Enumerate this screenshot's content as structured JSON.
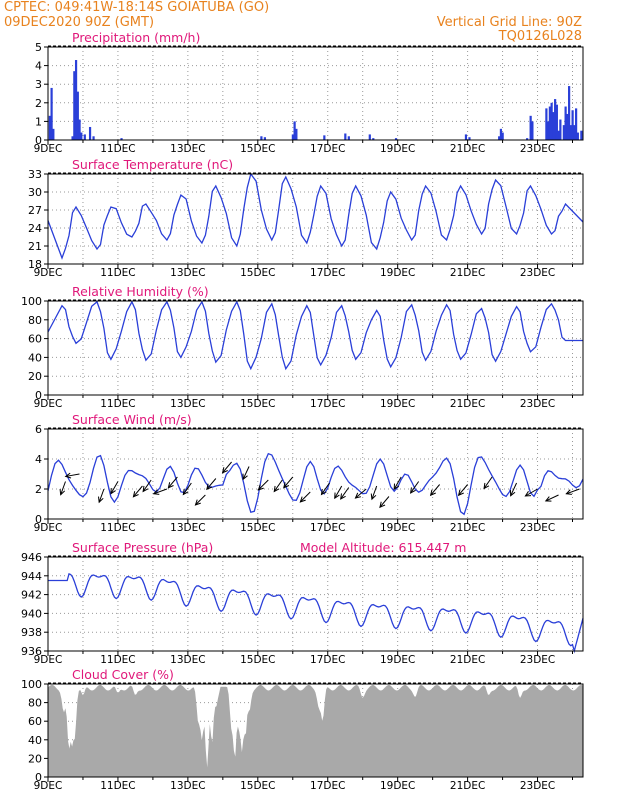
{
  "header": {
    "line1": "CPTEC:  049:41W-18:14S  GOIATUBA (GO)",
    "line2": "09DEC2020 90Z (GMT)",
    "right1": "Vertical Grid Line: 90Z",
    "right2": "TQ0126L028"
  },
  "colors": {
    "header": "#e8821e",
    "title": "#e0187a",
    "line": "#2a3fd8",
    "cloud": "#a9a9a9"
  },
  "x_tick_labels": [
    "9DEC",
    "11DEC",
    "13DEC",
    "15DEC",
    "17DEC",
    "19DEC",
    "21DEC",
    "23DEC"
  ],
  "model_altitude": "Model Altitude: 615.447 m",
  "chart_data": [
    {
      "type": "bar",
      "title": "Precipitation (mm/h)",
      "ylim": [
        0,
        5
      ],
      "yticks": [
        "0",
        "1",
        "2",
        "3",
        "4",
        "5"
      ],
      "x_days": [
        0,
        15.3
      ],
      "series": [
        {
          "values": [
            [
              0.05,
              1.3
            ],
            [
              0.1,
              2.8
            ],
            [
              0.15,
              0.6
            ],
            [
              0.7,
              0.2
            ],
            [
              0.75,
              3.7
            ],
            [
              0.8,
              4.3
            ],
            [
              0.85,
              2.6
            ],
            [
              0.9,
              1.1
            ],
            [
              0.95,
              0.4
            ],
            [
              1.05,
              0.3
            ],
            [
              1.2,
              0.7
            ],
            [
              1.3,
              0.2
            ],
            [
              2.1,
              0.1
            ],
            [
              6.1,
              0.2
            ],
            [
              6.2,
              0.15
            ],
            [
              7.0,
              0.3
            ],
            [
              7.05,
              1.0
            ],
            [
              7.1,
              0.6
            ],
            [
              7.9,
              0.25
            ],
            [
              8.5,
              0.35
            ],
            [
              8.6,
              0.2
            ],
            [
              9.2,
              0.3
            ],
            [
              9.3,
              0.1
            ],
            [
              9.95,
              0.1
            ],
            [
              11.95,
              0.3
            ],
            [
              12.05,
              0.15
            ],
            [
              12.9,
              0.2
            ],
            [
              12.95,
              0.6
            ],
            [
              13.0,
              0.4
            ],
            [
              13.7,
              0.1
            ],
            [
              13.8,
              1.3
            ],
            [
              13.85,
              1.0
            ],
            [
              14.25,
              1.7
            ],
            [
              14.3,
              1.0
            ],
            [
              14.35,
              1.8
            ],
            [
              14.4,
              2.0
            ],
            [
              14.45,
              1.5
            ],
            [
              14.5,
              2.2
            ],
            [
              14.55,
              1.9
            ],
            [
              14.6,
              0.5
            ],
            [
              14.65,
              1.1
            ],
            [
              14.75,
              0.8
            ],
            [
              14.8,
              1.8
            ],
            [
              14.85,
              1.4
            ],
            [
              14.9,
              2.9
            ],
            [
              14.95,
              0.8
            ],
            [
              15.0,
              1.6
            ],
            [
              15.05,
              0.8
            ],
            [
              15.1,
              1.7
            ],
            [
              15.15,
              0.4
            ],
            [
              15.25,
              0.5
            ]
          ]
        }
      ]
    },
    {
      "type": "line",
      "title": "Surface Temperature (nC)",
      "ylim": [
        18,
        33
      ],
      "yticks": [
        "18",
        "21",
        "24",
        "27",
        "30",
        "33"
      ],
      "base": {
        "morning": [
          19.0,
          20.5,
          22.5,
          22.0,
          21.5,
          21.0,
          22.0,
          21.5,
          21.0,
          20.5,
          22.0,
          22.0,
          23.0,
          23.0,
          23.0,
          22.0
        ],
        "afternoon": [
          27.5,
          27.5,
          28.0,
          29.5,
          31.0,
          33.0,
          32.5,
          31.0,
          31.0,
          30.0,
          31.0,
          31.0,
          32.0,
          31.0,
          28.0
        ]
      }
    },
    {
      "type": "line",
      "title": "Relative Humidity (%)",
      "ylim": [
        0,
        100
      ],
      "yticks": [
        "0",
        "20",
        "40",
        "60",
        "80",
        "100"
      ],
      "base": {
        "morning": [
          95,
          99,
          99,
          99,
          99,
          99,
          97,
          95,
          95,
          90,
          96,
          96,
          92,
          94,
          97,
          99
        ],
        "afternoon": [
          55,
          38,
          37,
          40,
          35,
          28,
          28,
          32,
          38,
          30,
          37,
          38,
          36,
          46,
          58
        ]
      }
    },
    {
      "type": "line",
      "title": "Surface Wind (m/s)",
      "ylim": [
        0,
        6
      ],
      "yticks": [
        "0",
        "2",
        "4",
        "6"
      ],
      "arrows": [
        [
          0.5,
          2.5,
          200
        ],
        [
          0.9,
          3.0,
          260
        ],
        [
          1.6,
          2.0,
          200
        ],
        [
          2.0,
          2.5,
          210
        ],
        [
          2.7,
          2.2,
          220
        ],
        [
          2.95,
          2.6,
          215
        ],
        [
          3.4,
          2.0,
          250
        ],
        [
          3.7,
          2.8,
          220
        ],
        [
          4.1,
          2.4,
          215
        ],
        [
          4.5,
          1.6,
          225
        ],
        [
          4.8,
          2.7,
          220
        ],
        [
          5.25,
          3.8,
          220
        ],
        [
          5.75,
          3.5,
          205
        ],
        [
          6.3,
          2.6,
          225
        ],
        [
          6.7,
          2.6,
          215
        ],
        [
          7.0,
          2.8,
          220
        ],
        [
          7.5,
          1.8,
          225
        ],
        [
          8.05,
          2.4,
          215
        ],
        [
          8.4,
          2.2,
          210
        ],
        [
          8.6,
          2.1,
          215
        ],
        [
          9.1,
          2.0,
          230
        ],
        [
          9.4,
          2.2,
          200
        ],
        [
          9.75,
          1.5,
          220
        ],
        [
          10.1,
          2.8,
          210
        ],
        [
          10.6,
          2.5,
          215
        ],
        [
          11.2,
          2.3,
          220
        ],
        [
          12.0,
          2.3,
          220
        ],
        [
          12.7,
          2.8,
          215
        ],
        [
          13.4,
          2.4,
          205
        ],
        [
          14.0,
          2.0,
          240
        ],
        [
          14.6,
          1.6,
          245
        ],
        [
          15.2,
          2.0,
          250
        ]
      ]
    },
    {
      "type": "line",
      "title": "Surface Pressure (hPa)",
      "ylim": [
        936,
        946
      ],
      "yticks": [
        "936",
        "938",
        "940",
        "942",
        "944",
        "946"
      ],
      "trend": [
        [
          0,
          943.5
        ],
        [
          3,
          943.0
        ],
        [
          4.5,
          942.0
        ],
        [
          7,
          941.0
        ],
        [
          9,
          940.2
        ],
        [
          12,
          939.5
        ],
        [
          15.3,
          938.0
        ]
      ],
      "amplitude": 2.2
    },
    {
      "type": "area",
      "title": "Cloud Cover (%)",
      "ylim": [
        0,
        100
      ],
      "yticks": [
        "0",
        "20",
        "40",
        "60",
        "80",
        "100"
      ],
      "dips": [
        [
          0.45,
          70
        ],
        [
          0.6,
          30
        ],
        [
          0.7,
          25
        ],
        [
          0.75,
          40
        ],
        [
          1.0,
          88
        ],
        [
          2.0,
          90
        ],
        [
          2.5,
          88
        ],
        [
          4.3,
          60
        ],
        [
          4.4,
          40
        ],
        [
          4.55,
          10
        ],
        [
          4.7,
          30
        ],
        [
          4.8,
          75
        ],
        [
          5.25,
          55
        ],
        [
          5.35,
          15
        ],
        [
          5.45,
          55
        ],
        [
          5.55,
          25
        ],
        [
          5.65,
          40
        ],
        [
          5.75,
          70
        ],
        [
          7.75,
          75
        ],
        [
          7.85,
          60
        ],
        [
          9.0,
          85
        ],
        [
          10.5,
          86
        ],
        [
          12.6,
          88
        ],
        [
          13.5,
          85
        ]
      ]
    }
  ]
}
